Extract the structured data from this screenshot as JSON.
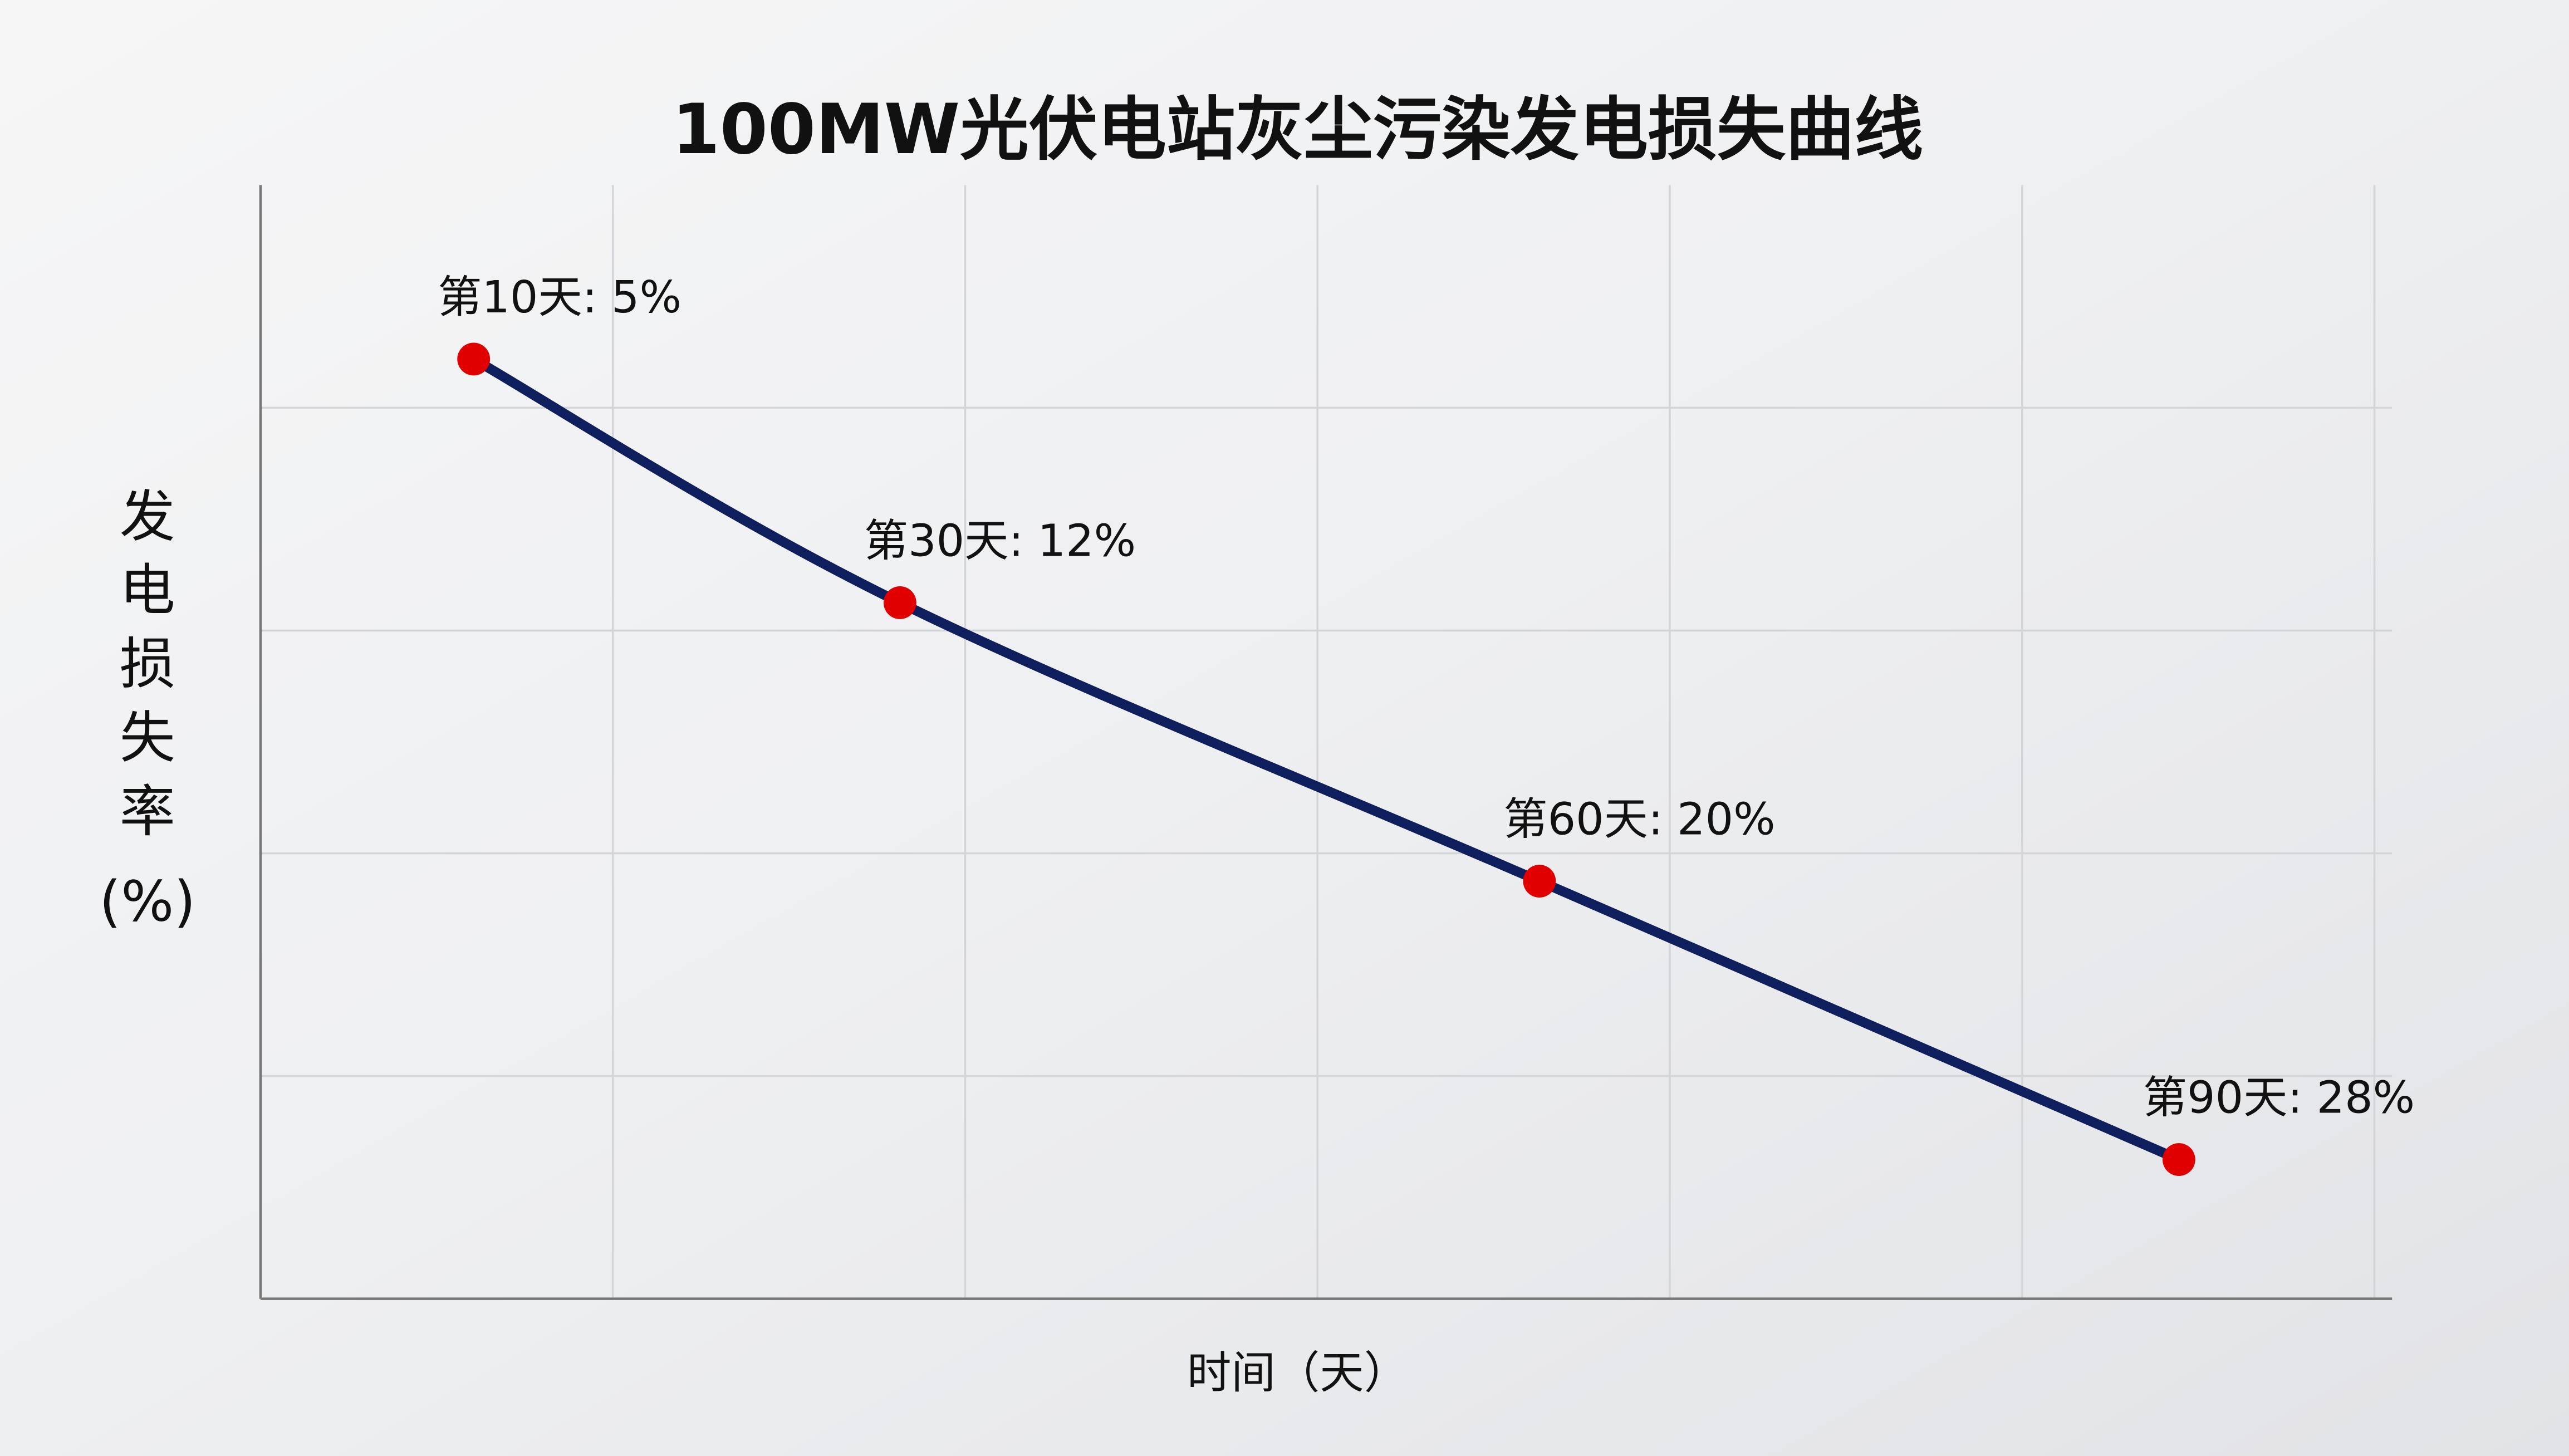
{
  "chart_data": {
    "type": "line",
    "title": "100MW光伏电站灰尘污染发电损失曲线",
    "x_label": "时间（天）",
    "y_label": "发电损失率(%)",
    "x": [
      10,
      30,
      60,
      90
    ],
    "values": [
      5,
      12,
      20,
      28
    ],
    "value_labels": [
      "第10天: 5%",
      "第30天: 12%",
      "第60天: 20%",
      "第90天: 28%"
    ],
    "color": "#0f1f5e",
    "marker_color": "#e00000",
    "xlim": [
      0,
      100
    ],
    "ylim": [
      0,
      32
    ],
    "y_inverted": true,
    "grid": true
  }
}
